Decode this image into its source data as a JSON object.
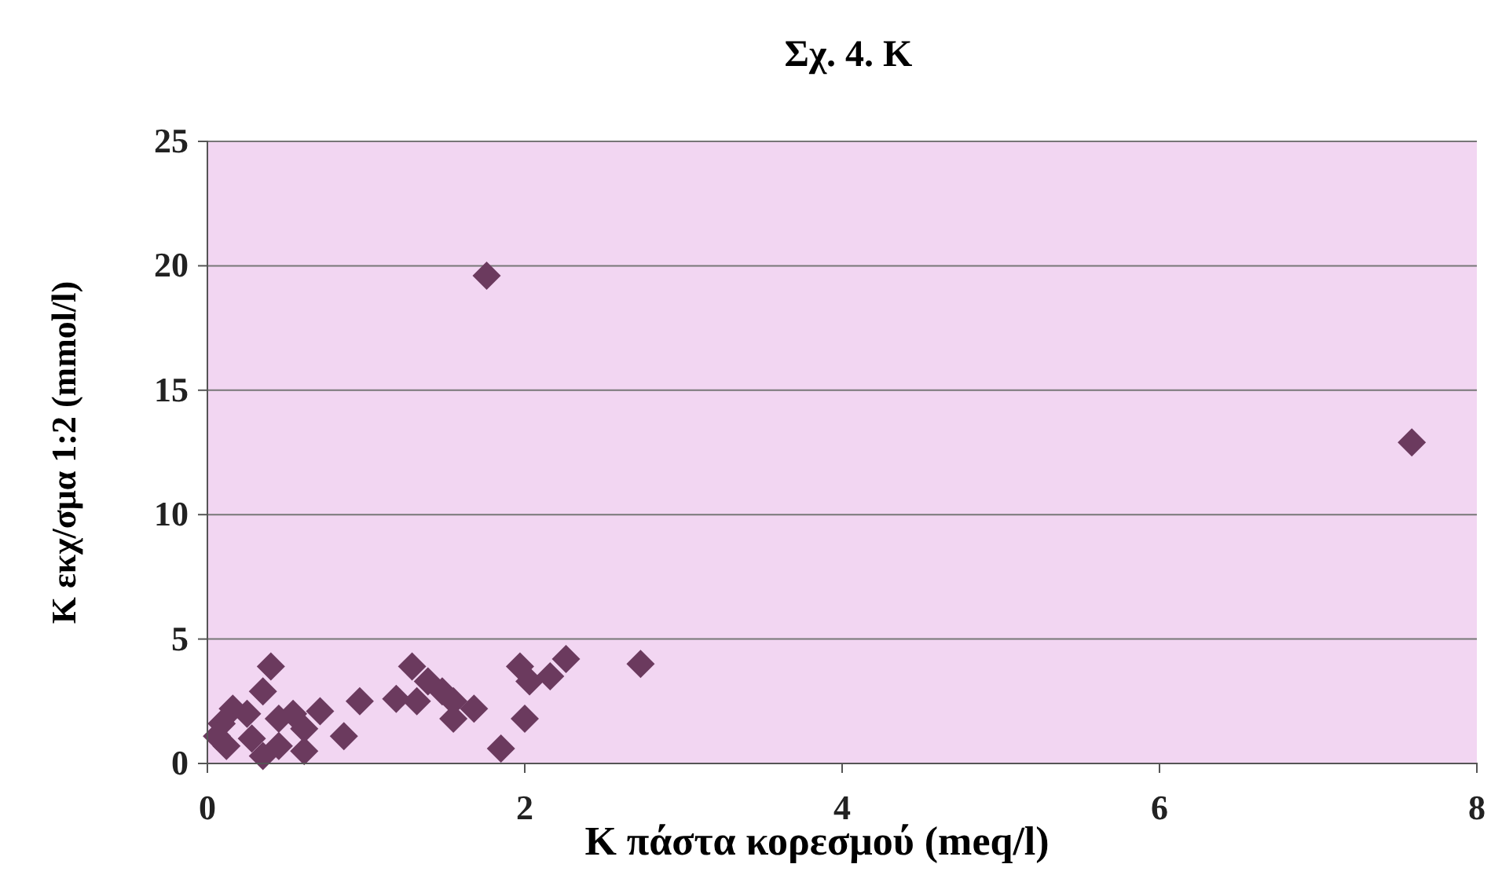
{
  "chart_data": {
    "type": "scatter",
    "title": "Σχ. 4. K",
    "xlabel": "K πάστα κορεσμού (meq/l)",
    "ylabel": "K εκχ/σμα 1:2 (mmol/l)",
    "xlim": [
      0,
      8
    ],
    "xticks": [
      0,
      2,
      4,
      6,
      8
    ],
    "ylim": [
      0,
      25
    ],
    "yticks": [
      0,
      5,
      10,
      15,
      20,
      25
    ],
    "grid": "y",
    "marker": "diamond",
    "series": [
      {
        "color": "#6b3a5e",
        "x": [
          0.4,
          2.73,
          1.97,
          2.26,
          2.16,
          2.03,
          2.0,
          1.85,
          1.29,
          1.19,
          1.39,
          1.48,
          1.55,
          1.55,
          1.68,
          1.32,
          0.96,
          0.86,
          0.71,
          0.61,
          0.35,
          0.16,
          0.09,
          0.12,
          0.28,
          0.45,
          0.54,
          0.25,
          0.45,
          0.06,
          0.61,
          0.35,
          1.76,
          7.59
        ],
        "values": [
          3.9,
          4.0,
          3.9,
          4.2,
          3.5,
          3.3,
          1.8,
          0.6,
          3.9,
          2.6,
          3.3,
          2.9,
          2.5,
          1.8,
          2.2,
          2.5,
          2.5,
          1.1,
          2.1,
          1.4,
          2.9,
          2.2,
          1.6,
          0.7,
          1.0,
          0.7,
          2.0,
          2.0,
          1.8,
          1.1,
          0.5,
          0.3,
          19.6,
          12.9
        ]
      }
    ]
  }
}
